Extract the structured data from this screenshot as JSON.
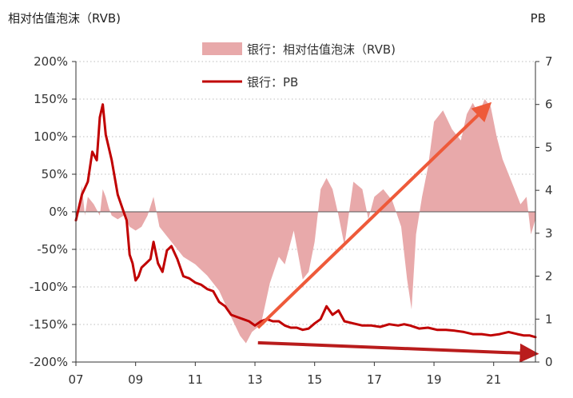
{
  "chart_data": {
    "type": "area+line",
    "left_axis_title": "相对估值泡沫（RVB)",
    "right_axis_title": "PB",
    "x_ticks": [
      "07",
      "09",
      "11",
      "13",
      "15",
      "17",
      "19",
      "21"
    ],
    "x_range": [
      2007.0,
      2022.4
    ],
    "y_left": {
      "ylim": [
        -200,
        200
      ],
      "ticks": [
        -200,
        -150,
        -100,
        -50,
        0,
        50,
        100,
        150,
        200
      ],
      "tick_labels": [
        "-200%",
        "-150%",
        "-100%",
        "-50%",
        "0%",
        "50%",
        "100%",
        "150%",
        "200%"
      ]
    },
    "y_right": {
      "ylim": [
        0,
        7
      ],
      "ticks": [
        0,
        1,
        2,
        3,
        4,
        5,
        6,
        7
      ],
      "tick_labels": [
        "0",
        "1",
        "2",
        "3",
        "4",
        "5",
        "6",
        "7"
      ]
    },
    "grid": "horizontal dotted",
    "legend_position": "top-center",
    "series": [
      {
        "name": "银行：相对估值泡沫（RVB)",
        "type": "area",
        "axis": "left",
        "color": "#e8a9aa",
        "x": [
          2007.0,
          2007.1,
          2007.2,
          2007.3,
          2007.4,
          2007.6,
          2007.8,
          2007.9,
          2008.0,
          2008.1,
          2008.2,
          2008.4,
          2008.6,
          2008.8,
          2009.0,
          2009.2,
          2009.4,
          2009.6,
          2009.8,
          2010.0,
          2010.3,
          2010.6,
          2011.0,
          2011.4,
          2011.8,
          2012.2,
          2012.5,
          2012.7,
          2012.9,
          2013.2,
          2013.5,
          2013.8,
          2014.0,
          2014.3,
          2014.6,
          2014.8,
          2015.0,
          2015.2,
          2015.4,
          2015.6,
          2015.8,
          2016.0,
          2016.3,
          2016.6,
          2016.8,
          2017.0,
          2017.3,
          2017.6,
          2017.9,
          2018.1,
          2018.25,
          2018.4,
          2018.6,
          2018.8,
          2019.0,
          2019.3,
          2019.6,
          2019.9,
          2020.1,
          2020.3,
          2020.5,
          2020.7,
          2020.9,
          2021.1,
          2021.3,
          2021.5,
          2021.7,
          2021.9,
          2022.1,
          2022.25,
          2022.4
        ],
        "values": [
          -10,
          5,
          35,
          -5,
          20,
          10,
          -5,
          30,
          20,
          5,
          -5,
          -10,
          -5,
          -20,
          -25,
          -20,
          -5,
          20,
          -20,
          -30,
          -45,
          -60,
          -70,
          -85,
          -105,
          -140,
          -165,
          -175,
          -160,
          -150,
          -95,
          -60,
          -70,
          -25,
          -90,
          -80,
          -40,
          30,
          45,
          30,
          -5,
          -45,
          40,
          30,
          -10,
          20,
          30,
          15,
          -20,
          -90,
          -130,
          -30,
          20,
          60,
          120,
          135,
          110,
          95,
          130,
          145,
          130,
          150,
          140,
          100,
          70,
          50,
          30,
          10,
          20,
          -30,
          -10
        ]
      },
      {
        "name": "银行：PB",
        "type": "line",
        "axis": "right",
        "color": "#c00000",
        "x": [
          2007.0,
          2007.1,
          2007.2,
          2007.4,
          2007.55,
          2007.7,
          2007.8,
          2007.9,
          2008.0,
          2008.2,
          2008.4,
          2008.6,
          2008.7,
          2008.8,
          2008.9,
          2009.0,
          2009.1,
          2009.2,
          2009.35,
          2009.5,
          2009.6,
          2009.75,
          2009.9,
          2010.05,
          2010.2,
          2010.4,
          2010.6,
          2010.8,
          2011.0,
          2011.2,
          2011.4,
          2011.6,
          2011.8,
          2012.0,
          2012.2,
          2012.4,
          2012.6,
          2012.8,
          2013.0,
          2013.2,
          2013.4,
          2013.6,
          2013.8,
          2014.0,
          2014.2,
          2014.4,
          2014.6,
          2014.8,
          2015.0,
          2015.2,
          2015.4,
          2015.6,
          2015.8,
          2016.0,
          2016.3,
          2016.6,
          2016.9,
          2017.2,
          2017.5,
          2017.8,
          2018.0,
          2018.2,
          2018.5,
          2018.8,
          2019.1,
          2019.4,
          2019.7,
          2020.0,
          2020.3,
          2020.6,
          2020.9,
          2021.2,
          2021.5,
          2021.8,
          2022.0,
          2022.2,
          2022.4
        ],
        "values": [
          3.3,
          3.6,
          3.9,
          4.2,
          4.9,
          4.7,
          5.7,
          6.0,
          5.3,
          4.7,
          3.9,
          3.5,
          3.3,
          2.5,
          2.3,
          1.9,
          2.0,
          2.2,
          2.3,
          2.4,
          2.8,
          2.3,
          2.1,
          2.6,
          2.7,
          2.4,
          2.0,
          1.95,
          1.85,
          1.8,
          1.7,
          1.65,
          1.4,
          1.3,
          1.1,
          1.05,
          1.0,
          0.95,
          0.85,
          0.95,
          1.0,
          0.95,
          0.95,
          0.85,
          0.8,
          0.8,
          0.75,
          0.78,
          0.9,
          1.0,
          1.3,
          1.1,
          1.2,
          0.95,
          0.9,
          0.85,
          0.85,
          0.82,
          0.88,
          0.85,
          0.88,
          0.85,
          0.78,
          0.8,
          0.75,
          0.75,
          0.73,
          0.7,
          0.65,
          0.65,
          0.62,
          0.65,
          0.7,
          0.65,
          0.62,
          0.62,
          0.58
        ]
      }
    ],
    "annotations": [
      {
        "type": "arrow",
        "color": "#ee5a3a",
        "from": {
          "x": 2013.1,
          "y_right": 0.8
        },
        "to": {
          "x": 2020.7,
          "y_right": 5.9
        }
      },
      {
        "type": "arrow",
        "color": "#b91c1c",
        "from": {
          "x": 2013.1,
          "y_right": 0.45
        },
        "to": {
          "x": 2022.2,
          "y_right": 0.2
        }
      }
    ]
  }
}
